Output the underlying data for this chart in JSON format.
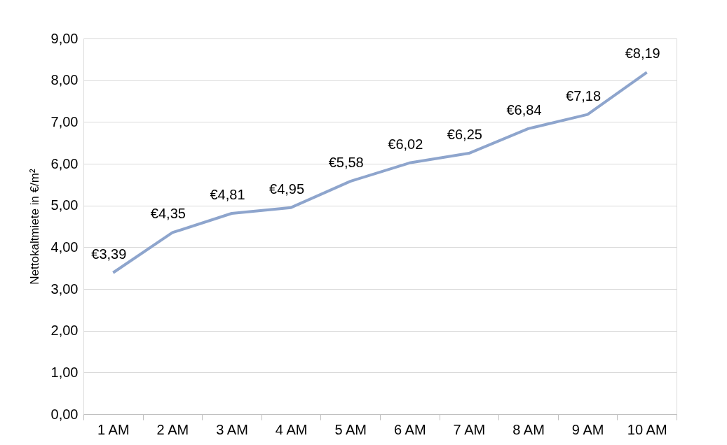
{
  "chart_data": {
    "type": "line",
    "ylabel": "Nettokaltmiete in €/m²",
    "categories": [
      "1 AM",
      "2 AM",
      "3 AM",
      "4 AM",
      "5 AM",
      "6 AM",
      "7 AM",
      "8 AM",
      "9 AM",
      "10 AM"
    ],
    "series": [
      {
        "color": "#8ea5cd",
        "values": [
          3.39,
          4.35,
          4.81,
          4.95,
          5.58,
          6.02,
          6.25,
          6.84,
          7.18,
          8.19
        ],
        "value_labels": [
          "€3,39",
          "€4,35",
          "€4,81",
          "€4,95",
          "€5,58",
          "€6,02",
          "€6,25",
          "€6,84",
          "€7,18",
          "€8,19"
        ]
      }
    ],
    "ylim": [
      0,
      9
    ],
    "yticks": [
      {
        "value": 0,
        "label": "0,00"
      },
      {
        "value": 1,
        "label": "1,00"
      },
      {
        "value": 2,
        "label": "2,00"
      },
      {
        "value": 3,
        "label": "3,00"
      },
      {
        "value": 4,
        "label": "4,00"
      },
      {
        "value": 5,
        "label": "5,00"
      },
      {
        "value": 6,
        "label": "6,00"
      },
      {
        "value": 7,
        "label": "7,00"
      },
      {
        "value": 8,
        "label": "8,00"
      },
      {
        "value": 9,
        "label": "9,00"
      }
    ],
    "grid": "y",
    "marker": "none",
    "line_style": "solid"
  }
}
